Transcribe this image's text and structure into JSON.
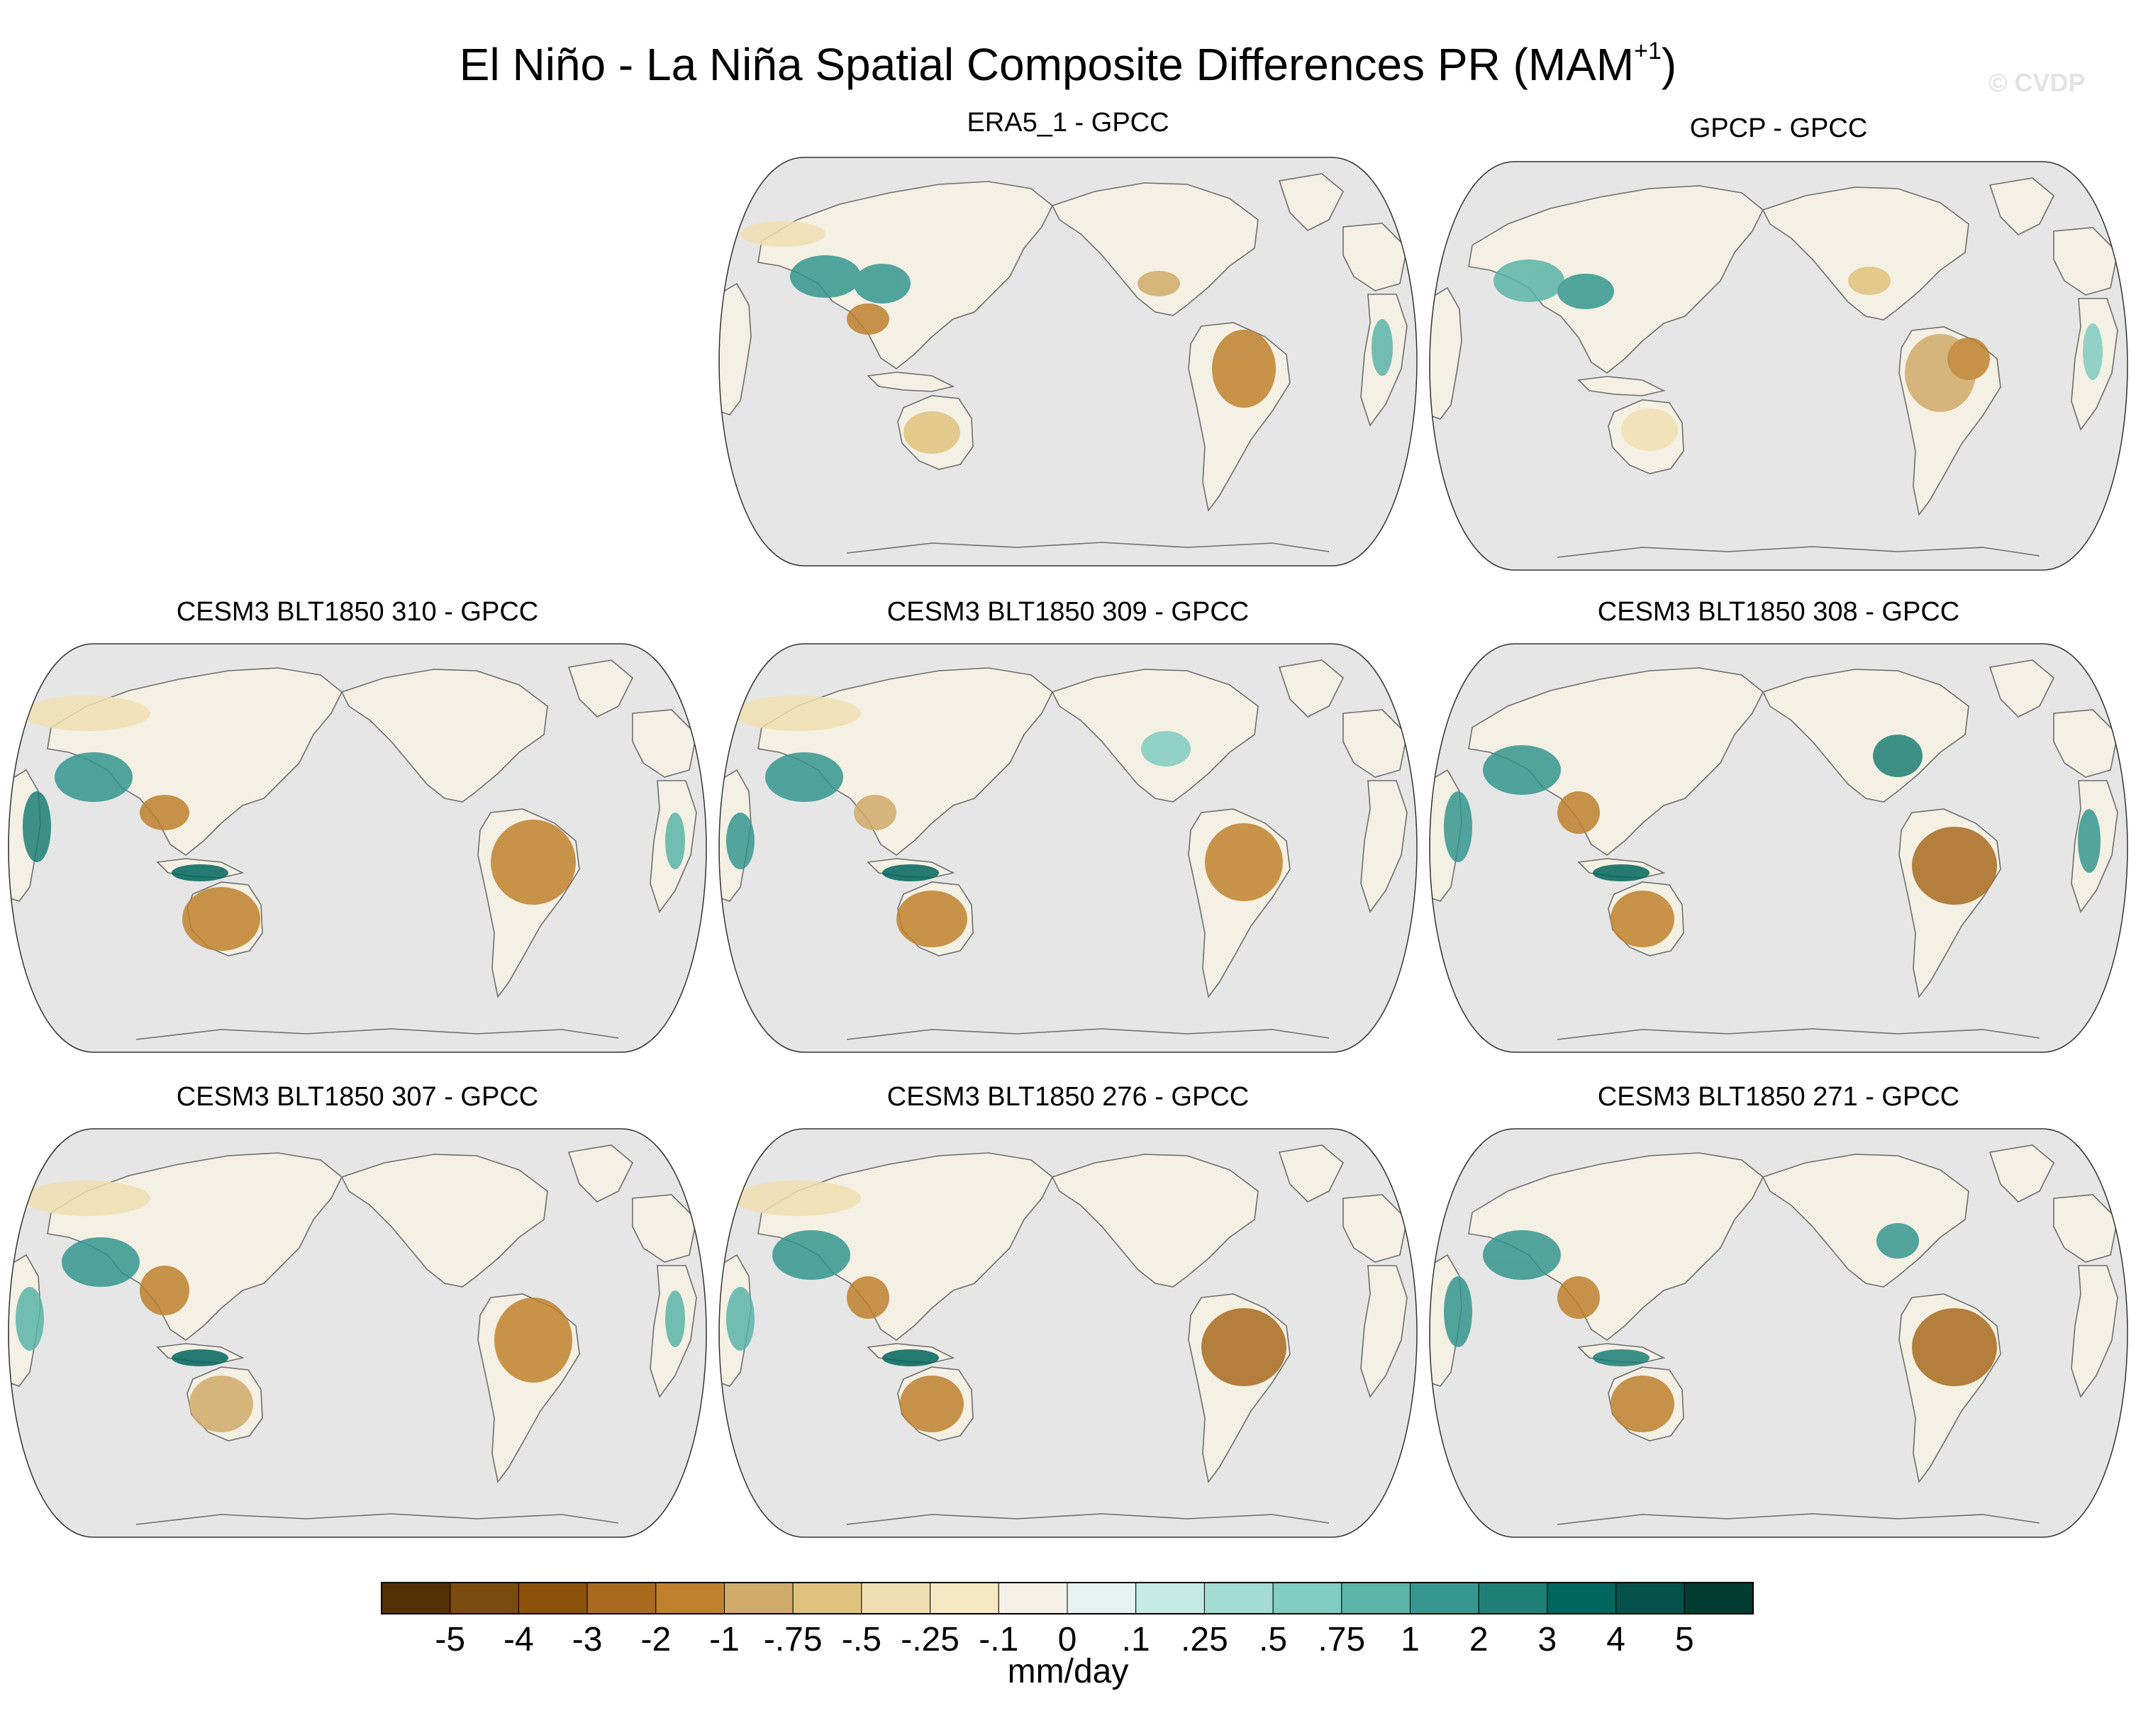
{
  "figure": {
    "title_main": "El Niño - La Niña Spatial Composite Differences PR (MAM",
    "title_sup": "+1",
    "title_close": ")",
    "watermark": "© CVDP"
  },
  "panels": [
    {
      "title": "ERA5_1 - GPCC"
    },
    {
      "title": "GPCP - GPCC"
    },
    {
      "title": "CESM3 BLT1850 310 - GPCC"
    },
    {
      "title": "CESM3 BLT1850 309 - GPCC"
    },
    {
      "title": "CESM3 BLT1850 308 - GPCC"
    },
    {
      "title": "CESM3 BLT1850 307 - GPCC"
    },
    {
      "title": "CESM3 BLT1850 276 - GPCC"
    },
    {
      "title": "CESM3 BLT1850 271 - GPCC"
    }
  ],
  "colorbar": {
    "units": "mm/day",
    "labels": [
      "-5",
      "-4",
      "-3",
      "-2",
      "-1",
      "-.75",
      "-.5",
      "-.25",
      "-.1",
      "0",
      ".1",
      ".25",
      ".5",
      ".75",
      "1",
      "2",
      "3",
      "4",
      "5"
    ],
    "colors": [
      "#543005",
      "#7b4a0e",
      "#8c510a",
      "#a86a1f",
      "#bf812d",
      "#d1ab6a",
      "#dfc27d",
      "#f0dfb2",
      "#f6e8c3",
      "#f5f1e8",
      "#e8f3f1",
      "#c7eae5",
      "#a3dcd3",
      "#80cdc1",
      "#5ab4a8",
      "#35978f",
      "#1d7f76",
      "#01665e",
      "#05514b",
      "#003c30"
    ]
  },
  "style": {
    "ocean_color": "#e6e6e6",
    "coast_color": "#6e6e6e",
    "dry_color": "#bf812d",
    "wet_color": "#35978f"
  }
}
